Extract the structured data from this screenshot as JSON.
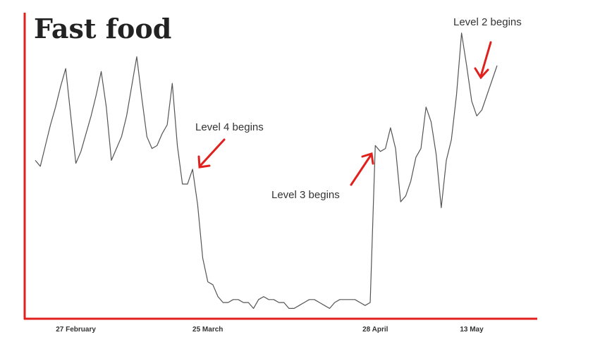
{
  "chart_data": {
    "type": "line",
    "title": "Fast food",
    "categories": [
      null,
      null,
      null,
      null,
      null,
      null,
      null,
      null,
      "27 February",
      null,
      null,
      null,
      null,
      null,
      null,
      null,
      null,
      null,
      null,
      null,
      null,
      null,
      null,
      null,
      null,
      null,
      null,
      null,
      null,
      null,
      null,
      null,
      null,
      null,
      "25 March",
      null,
      null,
      null,
      null,
      null,
      null,
      null,
      null,
      null,
      null,
      null,
      null,
      null,
      null,
      null,
      null,
      null,
      null,
      null,
      null,
      null,
      null,
      null,
      null,
      null,
      null,
      null,
      null,
      null,
      null,
      null,
      null,
      "28 April",
      null,
      null,
      null,
      null,
      null,
      null,
      null,
      null,
      null,
      null,
      null,
      null,
      null,
      null,
      null,
      null,
      null,
      null,
      "13 May",
      null,
      null,
      null,
      null,
      null
    ],
    "values": [
      53,
      51,
      58,
      65,
      71,
      78,
      84,
      68,
      52,
      56,
      62,
      68,
      75,
      83,
      71,
      53,
      57,
      61,
      68,
      78,
      88,
      74,
      61,
      57,
      58,
      62,
      65,
      79,
      58,
      45,
      45,
      50,
      38,
      20,
      12,
      11,
      7,
      5,
      5,
      6,
      6,
      5,
      5,
      3,
      6,
      7,
      6,
      6,
      5,
      5,
      3,
      3,
      4,
      5,
      6,
      6,
      5,
      4,
      3,
      5,
      6,
      6,
      6,
      6,
      5,
      4,
      5,
      58,
      56,
      57,
      64,
      57,
      39,
      41,
      46,
      54,
      57,
      71,
      66,
      55,
      37,
      53,
      60,
      75,
      96,
      85,
      73,
      68,
      70,
      75,
      80,
      85
    ],
    "color": "#555555",
    "ylim": [
      0,
      100
    ],
    "annotations": [
      "Level 4 begins",
      "Level 3 begins",
      "Level 2 begins"
    ]
  }
}
